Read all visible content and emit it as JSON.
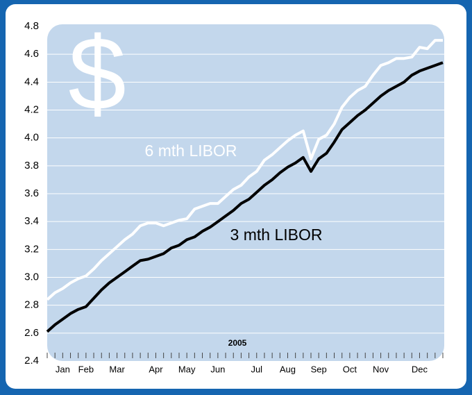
{
  "chart_data": {
    "type": "line",
    "symbol": "$",
    "x_label": "2005",
    "categories": [
      null,
      null,
      "Jan",
      null,
      null,
      "Feb",
      null,
      null,
      null,
      "Mar",
      null,
      null,
      null,
      null,
      "Apr",
      null,
      null,
      null,
      "May",
      null,
      null,
      null,
      "Jun",
      null,
      null,
      null,
      null,
      "Jul",
      null,
      null,
      null,
      "Aug",
      null,
      null,
      null,
      "Sep",
      null,
      null,
      null,
      "Oct",
      null,
      null,
      null,
      "Nov",
      null,
      null,
      null,
      null,
      "Dec",
      null,
      null,
      null
    ],
    "series": [
      {
        "name": "6 mth LIBOR",
        "color": "#ffffff",
        "values": [
          2.84,
          2.89,
          2.92,
          2.96,
          2.99,
          3.01,
          3.06,
          3.12,
          3.17,
          3.22,
          3.27,
          3.31,
          3.37,
          3.39,
          3.39,
          3.37,
          3.39,
          3.41,
          3.42,
          3.49,
          3.51,
          3.53,
          3.53,
          3.58,
          3.63,
          3.66,
          3.72,
          3.76,
          3.84,
          3.88,
          3.93,
          3.98,
          4.02,
          4.05,
          3.85,
          3.99,
          4.02,
          4.1,
          4.22,
          4.29,
          4.34,
          4.37,
          4.45,
          4.52,
          4.54,
          4.57,
          4.57,
          4.58,
          4.65,
          4.64,
          4.7,
          4.7
        ]
      },
      {
        "name": "3 mth LIBOR",
        "color": "#000000",
        "values": [
          2.61,
          2.66,
          2.7,
          2.74,
          2.77,
          2.79,
          2.85,
          2.91,
          2.96,
          3.0,
          3.04,
          3.08,
          3.12,
          3.13,
          3.15,
          3.17,
          3.21,
          3.23,
          3.27,
          3.29,
          3.33,
          3.36,
          3.4,
          3.44,
          3.48,
          3.53,
          3.56,
          3.61,
          3.66,
          3.7,
          3.75,
          3.79,
          3.82,
          3.86,
          3.76,
          3.85,
          3.89,
          3.97,
          4.06,
          4.11,
          4.16,
          4.2,
          4.25,
          4.3,
          4.34,
          4.37,
          4.4,
          4.45,
          4.48,
          4.5,
          4.52,
          4.54
        ]
      }
    ],
    "ylim": [
      2.4,
      4.8
    ],
    "yticks": [
      2.4,
      2.6,
      2.8,
      {
        "value": 3,
        "label": "3.0"
      },
      3.2,
      3.4,
      3.6,
      3.8,
      {
        "value": 4,
        "label": "4.0"
      },
      4.2,
      4.4,
      4.6,
      4.8
    ],
    "grid": true,
    "plot_color": "#c3d7ec"
  }
}
